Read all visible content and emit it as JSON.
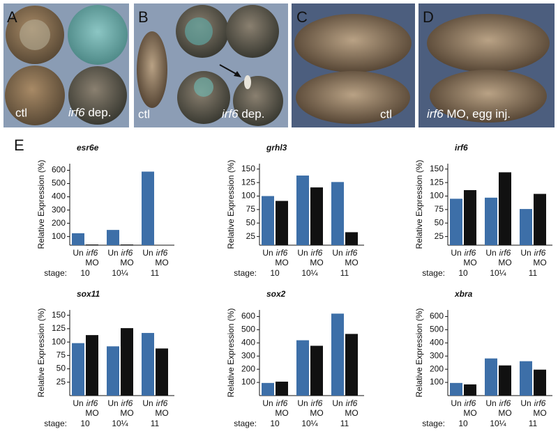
{
  "panels": [
    {
      "label": "A",
      "captions": [
        {
          "text": "ctl"
        },
        {
          "gene": "irf6",
          "text": " dep."
        }
      ]
    },
    {
      "label": "B",
      "captions": [
        {
          "text": "ctl"
        },
        {
          "gene": "irf6",
          "text": " dep."
        }
      ]
    },
    {
      "label": "C",
      "captions": [
        {
          "text": "ctl"
        }
      ]
    },
    {
      "label": "D",
      "captions": [
        {
          "gene": "irf6",
          "text": " MO, egg inj."
        }
      ]
    }
  ],
  "chart_label": "E",
  "chart_data": [
    {
      "type": "bar",
      "title": "esr6e",
      "y_label": "Relative Expression (%)",
      "stage_label": "stage:",
      "morpholino": "irf6",
      "categories": [
        "10",
        "10¼",
        "11"
      ],
      "series": [
        {
          "name": "Un",
          "color": "#3d6fa8",
          "values": [
            125,
            150,
            590
          ]
        },
        {
          "name": "MO",
          "color": "#111111",
          "values": [
            40,
            40,
            35
          ]
        }
      ],
      "ylim": [
        35,
        650
      ],
      "yticks": [
        100,
        200,
        300,
        400,
        500,
        600
      ]
    },
    {
      "type": "bar",
      "title": "grhl3",
      "y_label": "Relative Expression (%)",
      "stage_label": "stage:",
      "morpholino": "irf6",
      "categories": [
        "10",
        "10¼",
        "11"
      ],
      "series": [
        {
          "name": "Un",
          "color": "#3d6fa8",
          "values": [
            100,
            138,
            126
          ]
        },
        {
          "name": "MO",
          "color": "#111111",
          "values": [
            91,
            116,
            33
          ]
        }
      ],
      "ylim": [
        9,
        160
      ],
      "yticks": [
        25,
        50,
        75,
        100,
        125,
        150
      ]
    },
    {
      "type": "bar",
      "title": "irf6",
      "y_label": "Relative Expression (%)",
      "stage_label": "stage:",
      "morpholino": "irf6",
      "categories": [
        "10",
        "10¼",
        "11"
      ],
      "series": [
        {
          "name": "Un",
          "color": "#3d6fa8",
          "values": [
            95,
            97,
            76
          ]
        },
        {
          "name": "MO",
          "color": "#111111",
          "values": [
            111,
            144,
            104
          ]
        }
      ],
      "ylim": [
        9,
        160
      ],
      "yticks": [
        25,
        50,
        75,
        100,
        125,
        150
      ]
    },
    {
      "type": "bar",
      "title": "sox11",
      "y_label": "Relative Expression (%)",
      "stage_label": "stage:",
      "morpholino": "irf6",
      "categories": [
        "10",
        "10¼",
        "11"
      ],
      "series": [
        {
          "name": "Un",
          "color": "#3d6fa8",
          "values": [
            98,
            92,
            117
          ]
        },
        {
          "name": "MO",
          "color": "#111111",
          "values": [
            113,
            126,
            88
          ]
        }
      ],
      "ylim": [
        0,
        160
      ],
      "yticks": [
        25,
        50,
        75,
        100,
        125,
        150
      ]
    },
    {
      "type": "bar",
      "title": "sox2",
      "y_label": "Relative Expression (%)",
      "stage_label": "stage:",
      "morpholino": "irf6",
      "categories": [
        "10",
        "10¼",
        "11"
      ],
      "series": [
        {
          "name": "Un",
          "color": "#3d6fa8",
          "values": [
            96,
            420,
            622
          ]
        },
        {
          "name": "MO",
          "color": "#111111",
          "values": [
            106,
            378,
            468
          ]
        }
      ],
      "ylim": [
        0,
        650
      ],
      "yticks": [
        100,
        200,
        300,
        400,
        500,
        600
      ]
    },
    {
      "type": "bar",
      "title": "xbra",
      "y_label": "Relative Expression (%)",
      "stage_label": "stage:",
      "morpholino": "irf6",
      "categories": [
        "10",
        "10¼",
        "11"
      ],
      "series": [
        {
          "name": "Un",
          "color": "#3d6fa8",
          "values": [
            96,
            282,
            261
          ]
        },
        {
          "name": "MO",
          "color": "#111111",
          "values": [
            85,
            229,
            197
          ]
        }
      ],
      "ylim": [
        0,
        650
      ],
      "yticks": [
        100,
        200,
        300,
        400,
        500,
        600
      ]
    }
  ]
}
